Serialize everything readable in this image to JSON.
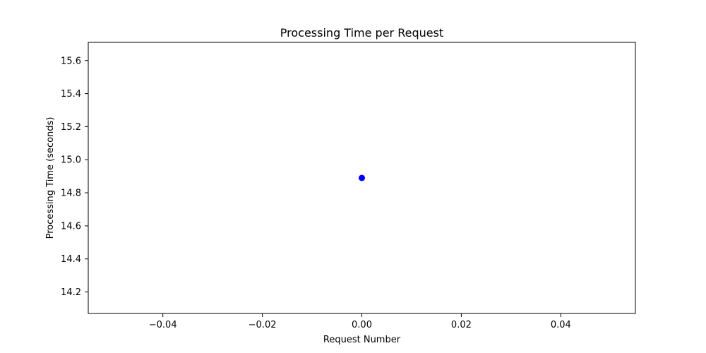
{
  "chart_data": {
    "type": "scatter",
    "title": "Processing Time per Request",
    "xlabel": "Request Number",
    "ylabel": "Processing Time (seconds)",
    "xlim": [
      -0.055,
      0.055
    ],
    "ylim": [
      14.07,
      15.71
    ],
    "xticks": [
      -0.04,
      -0.02,
      0.0,
      0.02,
      0.04
    ],
    "xtick_labels": [
      "−0.04",
      "−0.02",
      "0.00",
      "0.02",
      "0.04"
    ],
    "yticks": [
      14.2,
      14.4,
      14.6,
      14.8,
      15.0,
      15.2,
      15.4,
      15.6
    ],
    "ytick_labels": [
      "14.2",
      "14.4",
      "14.6",
      "14.8",
      "15.0",
      "15.2",
      "15.4",
      "15.6"
    ],
    "grid": false,
    "series": [
      {
        "color": "#0000ff",
        "points": [
          {
            "x": 0,
            "y": 14.89
          }
        ]
      }
    ]
  }
}
